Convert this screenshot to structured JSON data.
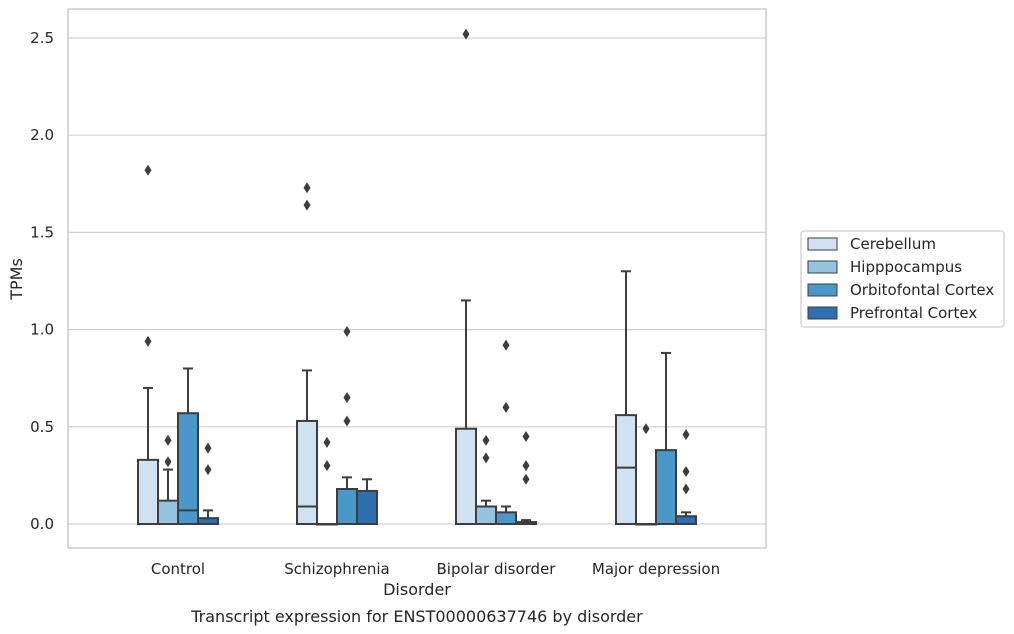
{
  "chart_data": {
    "type": "box",
    "title": "",
    "caption": "Transcript expression for ENST00000637746 by disorder",
    "xlabel": "Disorder",
    "ylabel": "TPMs",
    "ylim": [
      -0.12,
      2.62
    ],
    "yticks": [
      "0.0",
      "0.5",
      "1.0",
      "1.5",
      "2.0",
      "2.5"
    ],
    "ytick_values": [
      0,
      0.5,
      1.0,
      1.5,
      2.0,
      2.5
    ],
    "grid": true,
    "legend_position": "right",
    "categories": [
      "Control",
      "Schizophrenia",
      "Bipolar disorder",
      "Major depression"
    ],
    "series": [
      {
        "name": "Cerebellum",
        "color": "#d0e1f2",
        "boxes": [
          {
            "whislo": 0,
            "q1": 0,
            "med": 0,
            "q3": 0.33,
            "whishi": 0.7,
            "fliers": [
              0.94,
              1.82
            ]
          },
          {
            "whislo": 0,
            "q1": 0,
            "med": 0.09,
            "q3": 0.53,
            "whishi": 0.79,
            "fliers": [
              1.64,
              1.73
            ]
          },
          {
            "whislo": 0,
            "q1": 0,
            "med": 0,
            "q3": 0.49,
            "whishi": 1.15,
            "fliers": [
              2.52
            ]
          },
          {
            "whislo": 0,
            "q1": 0,
            "med": 0.29,
            "q3": 0.56,
            "whishi": 1.3,
            "fliers": []
          }
        ]
      },
      {
        "name": "Hipppocampus",
        "color": "#94c4df",
        "boxes": [
          {
            "whislo": 0,
            "q1": 0,
            "med": 0,
            "q3": 0.12,
            "whishi": 0.28,
            "fliers": [
              0.32,
              0.43
            ]
          },
          {
            "whislo": 0,
            "q1": 0,
            "med": 0,
            "q3": 0,
            "whishi": 0,
            "fliers": [
              0.3,
              0.42
            ]
          },
          {
            "whislo": 0,
            "q1": 0,
            "med": 0,
            "q3": 0.09,
            "whishi": 0.12,
            "fliers": [
              0.34,
              0.43
            ]
          },
          {
            "whislo": 0,
            "q1": 0,
            "med": 0,
            "q3": 0,
            "whishi": 0,
            "fliers": [
              0.49
            ]
          }
        ]
      },
      {
        "name": "Orbitofontal Cortex",
        "color": "#4a98c9",
        "boxes": [
          {
            "whislo": 0,
            "q1": 0,
            "med": 0.07,
            "q3": 0.57,
            "whishi": 0.8,
            "fliers": []
          },
          {
            "whislo": 0,
            "q1": 0,
            "med": 0,
            "q3": 0.18,
            "whishi": 0.24,
            "fliers": [
              0.53,
              0.65,
              0.99
            ]
          },
          {
            "whislo": 0,
            "q1": 0,
            "med": 0,
            "q3": 0.06,
            "whishi": 0.09,
            "fliers": [
              0.6,
              0.92
            ]
          },
          {
            "whislo": 0,
            "q1": 0,
            "med": 0,
            "q3": 0.38,
            "whishi": 0.88,
            "fliers": []
          }
        ]
      },
      {
        "name": "Prefrontal Cortex",
        "color": "#2e6fb0",
        "boxes": [
          {
            "whislo": 0,
            "q1": 0,
            "med": 0,
            "q3": 0.03,
            "whishi": 0.07,
            "fliers": [
              0.28,
              0.39
            ]
          },
          {
            "whislo": 0,
            "q1": 0,
            "med": 0,
            "q3": 0.17,
            "whishi": 0.23,
            "fliers": []
          },
          {
            "whislo": 0,
            "q1": 0,
            "med": 0,
            "q3": 0.01,
            "whishi": 0.02,
            "fliers": [
              0.23,
              0.3,
              0.45
            ]
          },
          {
            "whislo": 0,
            "q1": 0,
            "med": 0,
            "q3": 0.04,
            "whishi": 0.06,
            "fliers": [
              0.18,
              0.27,
              0.46
            ]
          }
        ]
      }
    ]
  }
}
